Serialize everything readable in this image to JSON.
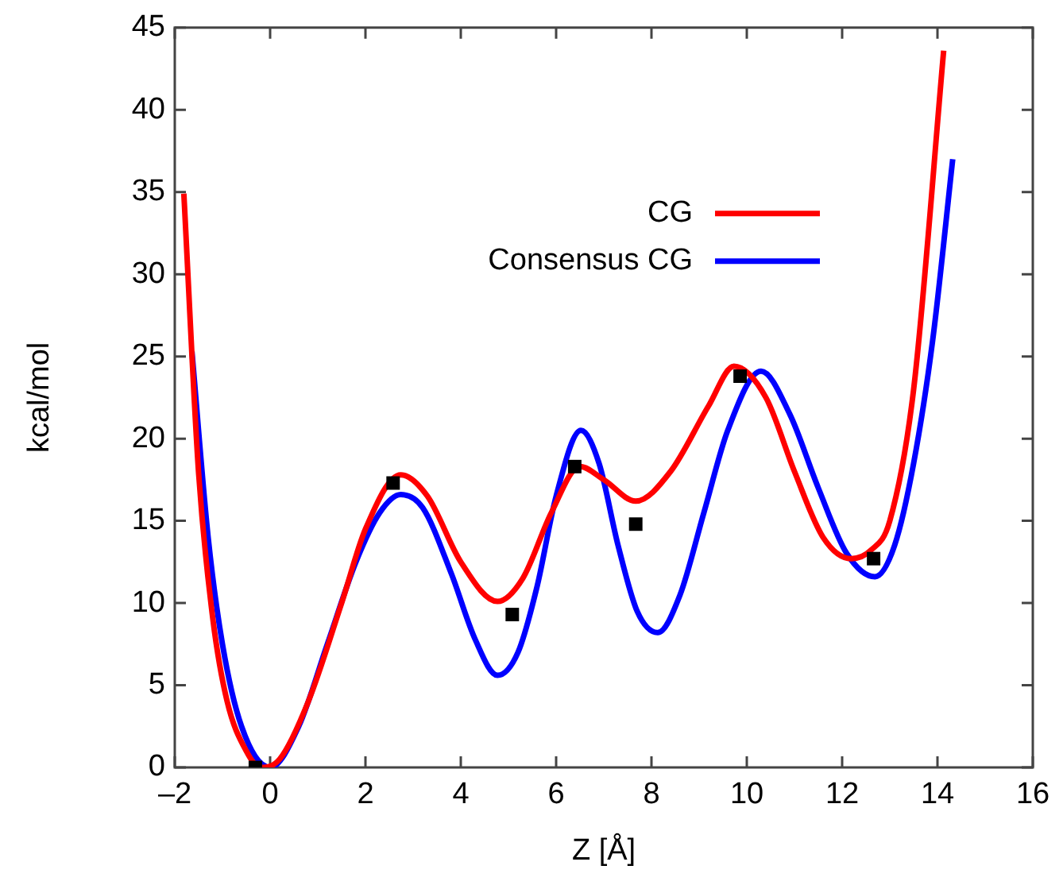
{
  "chart_data": {
    "type": "line",
    "xlabel": "Z [Å]",
    "ylabel": "kcal/mol",
    "xlim": [
      -2,
      16
    ],
    "xticks": [
      {
        "value": -2,
        "label": "–2"
      },
      0,
      2,
      4,
      6,
      8,
      10,
      12,
      14,
      16
    ],
    "ylim": [
      0,
      45
    ],
    "yticks": [
      0,
      5,
      10,
      15,
      20,
      25,
      30,
      35,
      40,
      45
    ],
    "grid": false,
    "legend": "top right",
    "line_style": "solid",
    "marker": "none",
    "series": [
      {
        "name": "CG",
        "color": "#ff0000",
        "x": [
          -1.81,
          -1.5,
          -1.2,
          -0.9,
          -0.5,
          -0.2,
          0.2,
          0.8,
          1.5,
          2.0,
          2.74,
          3.3,
          4.0,
          4.77,
          5.3,
          5.9,
          6.5,
          7.0,
          7.67,
          8.4,
          9.2,
          9.73,
          10.4,
          11.0,
          11.6,
          12.19,
          12.6,
          13.0,
          13.5,
          14.13
        ],
        "values": [
          34.9,
          17.9,
          9,
          4,
          1,
          0,
          0.5,
          4,
          10,
          14.5,
          17.8,
          16.5,
          12.5,
          10.1,
          11.5,
          15.5,
          18.3,
          17.5,
          16.2,
          18,
          22,
          24.4,
          22.5,
          18,
          14,
          12.7,
          13.2,
          15,
          23,
          43.6
        ]
      },
      {
        "name": "Consensus CG",
        "color": "#0000ff",
        "x": [
          -1.64,
          -1.3,
          -1,
          -0.6,
          0,
          0.6,
          1.2,
          1.8,
          2.3,
          2.74,
          3.2,
          3.8,
          4.3,
          4.77,
          5.2,
          5.6,
          6.0,
          6.52,
          6.9,
          7.3,
          7.7,
          8.13,
          8.6,
          9.1,
          9.6,
          10.3,
          10.9,
          11.5,
          12.1,
          12.69,
          13.1,
          13.5,
          13.9,
          14.32
        ],
        "values": [
          25.3,
          14,
          7.5,
          2.5,
          0,
          2.5,
          7.5,
          12.5,
          15.5,
          16.6,
          15.8,
          11.8,
          7.8,
          5.6,
          7,
          11,
          16.5,
          20.5,
          18.5,
          13.5,
          9.5,
          8.2,
          10.5,
          15.5,
          20.5,
          24.1,
          21.5,
          17,
          13,
          11.6,
          13.5,
          18.5,
          26,
          37
        ]
      },
      {
        "type": "scatter",
        "color": "#000000",
        "marker": "square",
        "x": [
          -0.31,
          2.58,
          5.08,
          6.39,
          7.67,
          9.86,
          12.66
        ],
        "values": [
          0,
          17.3,
          9.3,
          18.3,
          14.8,
          23.8,
          12.7
        ]
      }
    ]
  }
}
